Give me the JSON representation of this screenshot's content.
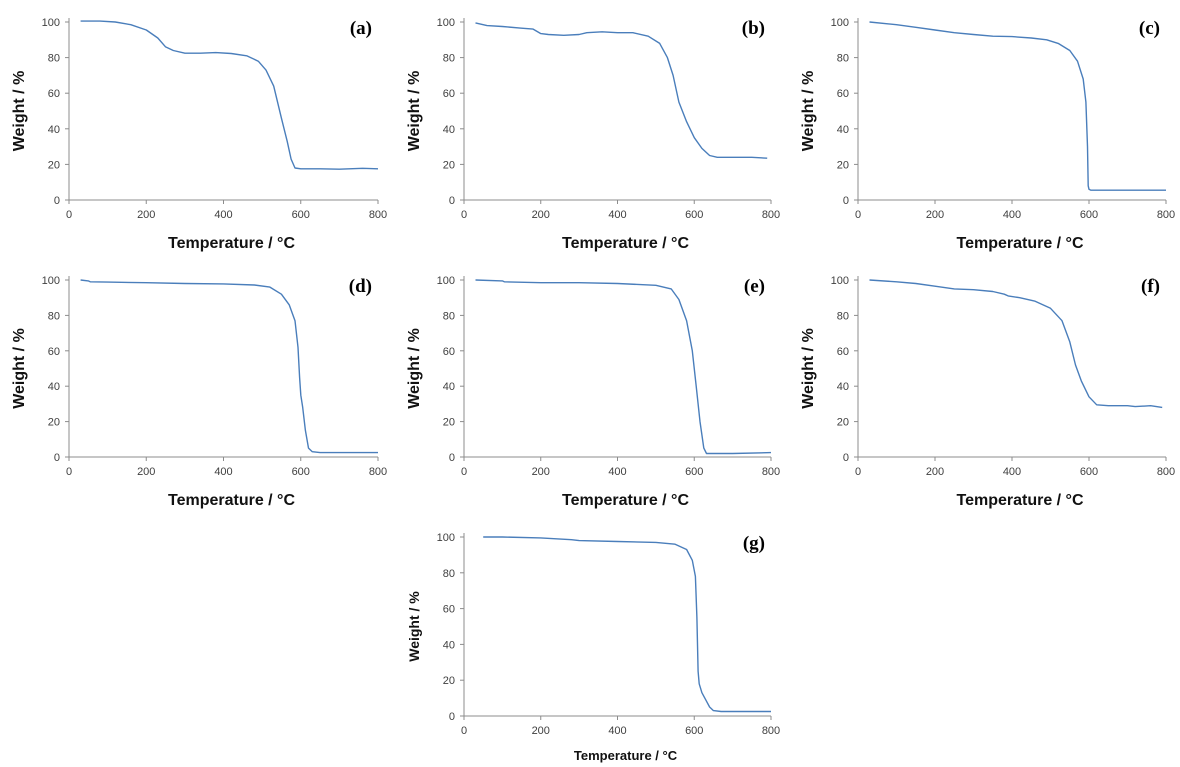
{
  "colors": {
    "series": "#4a7ebb"
  },
  "chart_data": [
    {
      "type": "line",
      "panel_label": "(a)",
      "xlabel": "Temperature / °C",
      "ylabel": "Weight / %",
      "xlim": [
        0,
        800
      ],
      "ylim": [
        0,
        100
      ],
      "x_ticks": [
        0,
        200,
        400,
        600,
        800
      ],
      "y_ticks": [
        0,
        20,
        40,
        60,
        80,
        100
      ],
      "series": [
        {
          "x": [
            30,
            80,
            120,
            160,
            200,
            230,
            250,
            270,
            300,
            340,
            380,
            420,
            460,
            490,
            510,
            530,
            550,
            565,
            575,
            585,
            600,
            650,
            700,
            760,
            800
          ],
          "y": [
            100.5,
            100.5,
            100,
            98.5,
            95.5,
            91,
            86,
            84,
            82.5,
            82.5,
            82.8,
            82.3,
            81,
            78,
            73,
            64,
            46,
            33,
            23,
            18,
            17.5,
            17.5,
            17.3,
            17.8,
            17.5
          ]
        }
      ]
    },
    {
      "type": "line",
      "panel_label": "(b)",
      "xlabel": "Temperature / °C",
      "ylabel": "Weight / %",
      "xlim": [
        0,
        800
      ],
      "ylim": [
        0,
        100
      ],
      "x_ticks": [
        0,
        200,
        400,
        600,
        800
      ],
      "y_ticks": [
        0,
        20,
        40,
        60,
        80,
        100
      ],
      "series": [
        {
          "x": [
            30,
            60,
            100,
            150,
            180,
            200,
            220,
            260,
            300,
            320,
            360,
            400,
            440,
            480,
            510,
            530,
            545,
            560,
            580,
            600,
            620,
            640,
            660,
            700,
            750,
            790
          ],
          "y": [
            99.5,
            98,
            97.5,
            96.5,
            96,
            93.5,
            93,
            92.5,
            93,
            94,
            94.5,
            94,
            94,
            92,
            88,
            80,
            70,
            55,
            44,
            35,
            29,
            25,
            24,
            24,
            24,
            23.5
          ]
        }
      ]
    },
    {
      "type": "line",
      "panel_label": "(c)",
      "xlabel": "Temperature / °C",
      "ylabel": "Weight / %",
      "xlim": [
        0,
        800
      ],
      "ylim": [
        0,
        100
      ],
      "x_ticks": [
        0,
        200,
        400,
        600,
        800
      ],
      "y_ticks": [
        0,
        20,
        40,
        60,
        80,
        100
      ],
      "series": [
        {
          "x": [
            30,
            100,
            150,
            200,
            250,
            300,
            350,
            400,
            450,
            490,
            520,
            550,
            570,
            585,
            592,
            596,
            598,
            600,
            605,
            620,
            700,
            800
          ],
          "y": [
            100,
            98.5,
            97,
            95.5,
            94,
            93,
            92,
            91.8,
            91,
            90,
            88,
            84,
            78,
            68,
            55,
            30,
            8,
            6,
            5.5,
            5.5,
            5.5,
            5.5
          ]
        }
      ]
    },
    {
      "type": "line",
      "panel_label": "(d)",
      "xlabel": "Temperature / °C",
      "ylabel": "Weight / %",
      "xlim": [
        0,
        800
      ],
      "ylim": [
        0,
        100
      ],
      "x_ticks": [
        0,
        200,
        400,
        600,
        800
      ],
      "y_ticks": [
        0,
        20,
        40,
        60,
        80,
        100
      ],
      "series": [
        {
          "x": [
            30,
            50,
            55,
            100,
            200,
            300,
            400,
            480,
            520,
            550,
            570,
            585,
            593,
            597,
            600,
            605,
            612,
            620,
            630,
            650,
            700,
            800
          ],
          "y": [
            100,
            99.5,
            99,
            98.8,
            98.5,
            98,
            97.8,
            97.2,
            96,
            92,
            86,
            77,
            62,
            45,
            35,
            28,
            15,
            5,
            3,
            2.5,
            2.5,
            2.5
          ]
        }
      ]
    },
    {
      "type": "line",
      "panel_label": "(e)",
      "xlabel": "Temperature / °C",
      "ylabel": "Weight / %",
      "xlim": [
        0,
        800
      ],
      "ylim": [
        0,
        100
      ],
      "x_ticks": [
        0,
        200,
        400,
        600,
        800
      ],
      "y_ticks": [
        0,
        20,
        40,
        60,
        80,
        100
      ],
      "series": [
        {
          "x": [
            30,
            100,
            105,
            200,
            300,
            400,
            500,
            540,
            560,
            580,
            595,
            605,
            615,
            625,
            632,
            640,
            700,
            800
          ],
          "y": [
            100,
            99.5,
            99,
            98.5,
            98.5,
            98,
            97,
            95,
            89,
            77,
            60,
            40,
            20,
            5,
            2,
            2,
            2,
            2.5
          ]
        }
      ]
    },
    {
      "type": "line",
      "panel_label": "(f)",
      "xlabel": "Temperature / °C",
      "ylabel": "Weight / %",
      "xlim": [
        0,
        800
      ],
      "ylim": [
        0,
        100
      ],
      "x_ticks": [
        0,
        200,
        400,
        600,
        800
      ],
      "y_ticks": [
        0,
        20,
        40,
        60,
        80,
        100
      ],
      "series": [
        {
          "x": [
            30,
            100,
            150,
            200,
            250,
            300,
            350,
            380,
            390,
            420,
            460,
            500,
            530,
            550,
            565,
            580,
            600,
            620,
            650,
            700,
            720,
            760,
            790
          ],
          "y": [
            100,
            99,
            98,
            96.5,
            95,
            94.5,
            93.5,
            92,
            91,
            90,
            88,
            84,
            77,
            65,
            52,
            43,
            34,
            29.5,
            29,
            29,
            28.5,
            29,
            28
          ]
        }
      ]
    },
    {
      "type": "line",
      "panel_label": "(g)",
      "xlabel": "Temperature / °C",
      "ylabel": "Weight / %",
      "xlim": [
        0,
        800
      ],
      "ylim": [
        0,
        100
      ],
      "x_ticks": [
        0,
        200,
        400,
        600,
        800
      ],
      "y_ticks": [
        0,
        20,
        40,
        60,
        80,
        100
      ],
      "series": [
        {
          "x": [
            50,
            100,
            200,
            280,
            300,
            400,
            500,
            550,
            580,
            595,
            603,
            607,
            610,
            613,
            620,
            630,
            640,
            650,
            670,
            700,
            800
          ],
          "y": [
            100,
            100,
            99.5,
            98.5,
            98,
            97.5,
            97,
            96,
            93,
            87,
            78,
            55,
            25,
            18,
            13,
            9,
            5,
            3,
            2.5,
            2.5,
            2.5
          ]
        }
      ]
    }
  ]
}
